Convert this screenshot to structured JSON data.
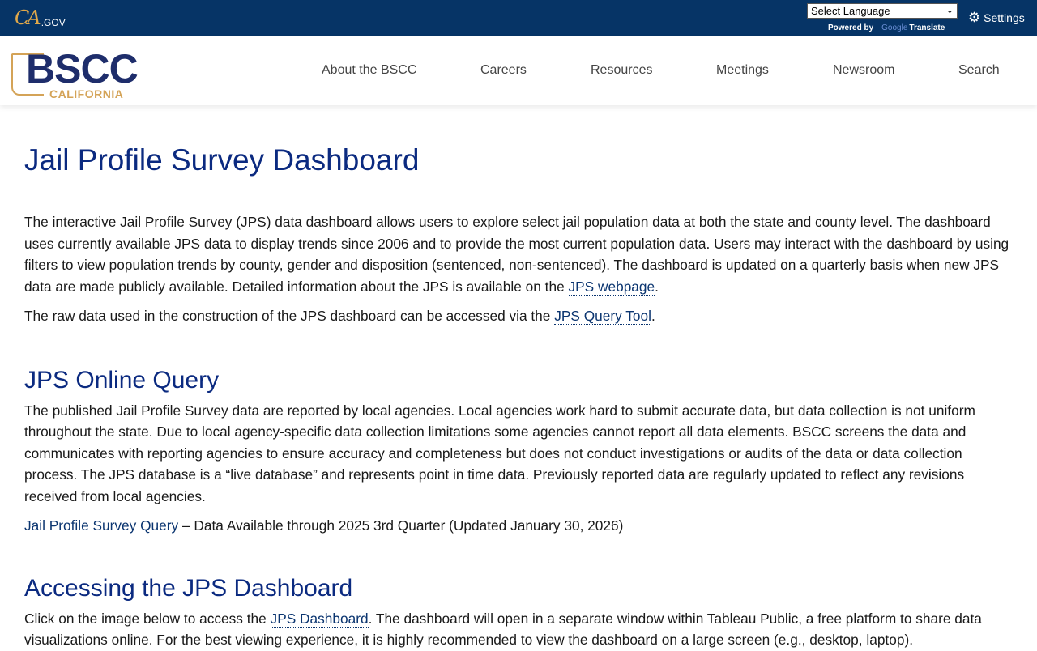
{
  "topbar": {
    "ca": "CA",
    "gov": ".GOV",
    "language_select": "Select Language",
    "powered_by": "Powered by",
    "google": "Google",
    "translate": "Translate",
    "settings": "Settings"
  },
  "logo": {
    "main": "BSCC",
    "sub": "CALIFORNIA"
  },
  "nav": [
    "About the BSCC",
    "Careers",
    "Resources",
    "Meetings",
    "Newsroom",
    "Search"
  ],
  "main": {
    "title": "Jail Profile Survey Dashboard",
    "intro": "The interactive Jail Profile Survey (JPS) data dashboard allows users to explore select jail population data at both the state and county level. The dashboard uses currently available JPS data to display trends since 2006 and to provide the most current population data. Users may interact with the dashboard by using filters to view population trends by county, gender and disposition (sentenced, non-sentenced). The dashboard is updated on a quarterly basis when new JPS data are made publicly available. Detailed information about the JPS is available on the ",
    "intro_link": "JPS webpage",
    "raw_pre": "The raw data used in the construction of the JPS dashboard can be accessed via the ",
    "raw_link": "JPS Query Tool",
    "query_heading": "JPS Online Query",
    "query_text": "The published Jail Profile Survey data are reported by local agencies. Local agencies work hard to submit accurate data, but data collection is not uniform throughout the state. Due to local agency-specific data collection limitations some agencies cannot report all data elements. BSCC screens the data and communicates with reporting agencies to ensure accuracy and completeness but does not conduct investigations or audits of the data or data collection process. The JPS database is a “live database” and represents point in time data. Previously reported data are regularly updated to reflect any revisions received from local agencies.",
    "query_link": "Jail Profile Survey Query",
    "query_avail": " – Data Available through 2025 3rd Quarter (Updated January 30, 2026)",
    "access_heading": "Accessing the JPS Dashboard",
    "access_pre": "Click on the image below to access the ",
    "access_link": "JPS Dashboard",
    "access_post": ". The dashboard will open in a separate window within Tableau Public, a free platform to share data visualizations online. For the best viewing experience, it is highly recommended to view the dashboard on a large screen (e.g., desktop, laptop)."
  }
}
